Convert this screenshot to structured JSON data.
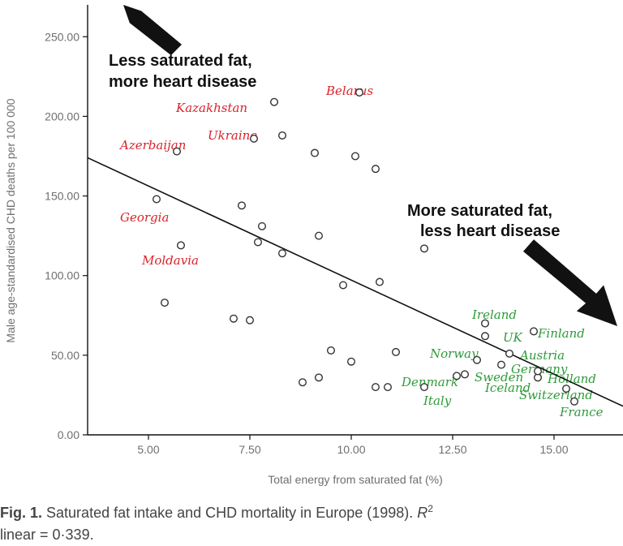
{
  "chart_data": {
    "type": "scatter",
    "title": "",
    "xlabel": "Total energy from saturated fat (%)",
    "ylabel": "Male age-standardised CHD deaths per 100 000",
    "xlim": [
      3.5,
      16.7
    ],
    "ylim": [
      0,
      270
    ],
    "xticks": [
      "5.00",
      "7.50",
      "10.00",
      "12.50",
      "15.00"
    ],
    "yticks": [
      "0.00",
      "50.00",
      "100.00",
      "150.00",
      "200.00",
      "250.00"
    ],
    "grid": false,
    "points": [
      [
        5.2,
        148
      ],
      [
        5.4,
        83
      ],
      [
        5.7,
        178
      ],
      [
        5.8,
        119
      ],
      [
        7.1,
        73
      ],
      [
        7.3,
        144
      ],
      [
        7.5,
        72
      ],
      [
        7.6,
        186
      ],
      [
        7.7,
        121
      ],
      [
        7.8,
        131
      ],
      [
        8.1,
        209
      ],
      [
        8.3,
        188
      ],
      [
        8.3,
        114
      ],
      [
        8.8,
        33
      ],
      [
        9.1,
        177
      ],
      [
        9.2,
        125
      ],
      [
        9.2,
        36
      ],
      [
        9.5,
        53
      ],
      [
        9.8,
        94
      ],
      [
        10.0,
        46
      ],
      [
        10.1,
        175
      ],
      [
        10.2,
        215
      ],
      [
        10.6,
        167
      ],
      [
        10.6,
        30
      ],
      [
        10.7,
        96
      ],
      [
        10.9,
        30
      ],
      [
        11.1,
        52
      ],
      [
        11.8,
        30
      ],
      [
        11.8,
        117
      ],
      [
        12.6,
        37
      ],
      [
        12.8,
        38
      ],
      [
        13.1,
        47
      ],
      [
        13.3,
        70
      ],
      [
        13.3,
        62
      ],
      [
        13.7,
        44
      ],
      [
        13.9,
        51
      ],
      [
        14.5,
        65
      ],
      [
        14.6,
        36
      ],
      [
        14.6,
        40
      ],
      [
        15.3,
        29
      ],
      [
        15.5,
        21
      ]
    ],
    "trend_line": {
      "x": [
        3.5,
        16.7
      ],
      "y": [
        174,
        18
      ]
    },
    "annotations": {
      "top_left": [
        "Less saturated fat,",
        "more heart disease"
      ],
      "right": [
        "More saturated fat,",
        "less heart disease"
      ]
    },
    "country_labels": {
      "red": [
        "Belarus",
        "Kazakhstan",
        "Ukraine",
        "Azerbaijan",
        "Georgia",
        "Moldavia"
      ],
      "green": [
        "Ireland",
        "UK",
        "Finland",
        "Norway",
        "Austria",
        "Germany",
        "Denmark",
        "Sweden",
        "Holland",
        "Iceland",
        "Italy",
        "Switzerland",
        "France"
      ]
    },
    "colors": {
      "red_labels": "#d8232a",
      "green_labels": "#2e9b3a",
      "points": "#333333",
      "trend": "#111111"
    }
  },
  "caption": {
    "figure_label": "Fig. 1.",
    "line1_text": "Saturated fat intake and CHD mortality in Europe (1998).",
    "r_symbol": "R",
    "r_superscript": "2",
    "line2_text": "linear = 0·339."
  }
}
